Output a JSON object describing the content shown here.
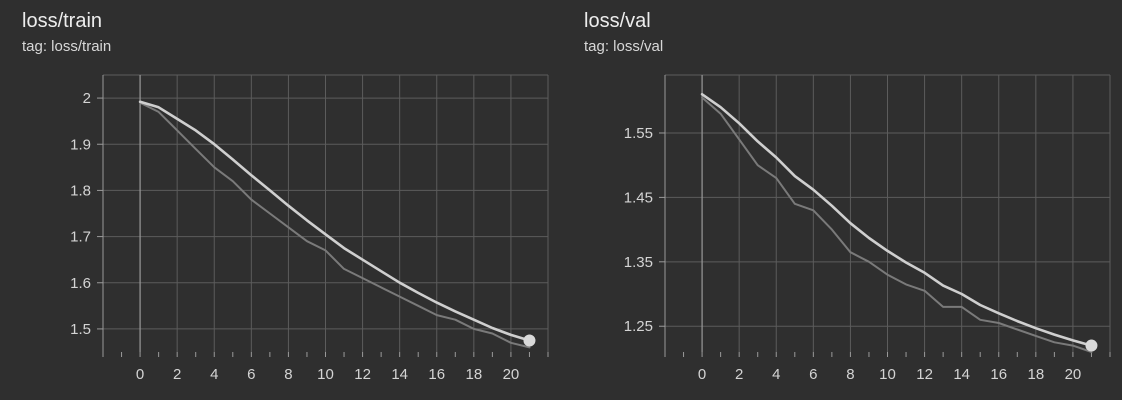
{
  "chart_data": [
    {
      "type": "line",
      "title": "loss/train",
      "subtitle": "tag: loss/train",
      "xlabel": "",
      "ylabel": "",
      "xlim": [
        -2,
        22
      ],
      "ylim": [
        1.45,
        2.05
      ],
      "xticks": [
        0,
        2,
        4,
        6,
        8,
        10,
        12,
        14,
        16,
        18,
        20
      ],
      "yticks": [
        1.5,
        1.6,
        1.7,
        1.8,
        1.9,
        2
      ],
      "grid": true,
      "series": [
        {
          "x": [
            0,
            1,
            2,
            3,
            4,
            5,
            6,
            7,
            8,
            9,
            10,
            11,
            12,
            13,
            14,
            15,
            16,
            17,
            18,
            19,
            20,
            21
          ],
          "values": [
            1.99,
            1.97,
            1.93,
            1.89,
            1.85,
            1.82,
            1.78,
            1.75,
            1.72,
            1.69,
            1.67,
            1.63,
            1.61,
            1.59,
            1.57,
            1.55,
            1.53,
            1.52,
            1.5,
            1.49,
            1.47,
            1.46
          ],
          "color": "#7a7a7a"
        },
        {
          "x": [
            0,
            1,
            2,
            3,
            4,
            5,
            6,
            7,
            8,
            9,
            10,
            11,
            12,
            13,
            14,
            15,
            16,
            17,
            18,
            19,
            20,
            21
          ],
          "values": [
            1.992,
            1.98,
            1.955,
            1.93,
            1.9,
            1.867,
            1.833,
            1.8,
            1.767,
            1.735,
            1.705,
            1.675,
            1.65,
            1.625,
            1.6,
            1.578,
            1.557,
            1.538,
            1.52,
            1.502,
            1.487,
            1.475
          ],
          "color": "#cfcfcf"
        }
      ]
    },
    {
      "type": "line",
      "title": "loss/val",
      "subtitle": "tag: loss/val",
      "xlabel": "",
      "ylabel": "",
      "xlim": [
        -2,
        22
      ],
      "ylim": [
        1.21,
        1.64
      ],
      "xticks": [
        0,
        2,
        4,
        6,
        8,
        10,
        12,
        14,
        16,
        18,
        20
      ],
      "yticks": [
        1.25,
        1.35,
        1.45,
        1.55
      ],
      "grid": true,
      "series": [
        {
          "x": [
            0,
            1,
            2,
            3,
            4,
            5,
            6,
            7,
            8,
            9,
            10,
            11,
            12,
            13,
            14,
            15,
            16,
            17,
            18,
            19,
            20,
            21
          ],
          "values": [
            1.605,
            1.58,
            1.54,
            1.5,
            1.48,
            1.44,
            1.43,
            1.4,
            1.365,
            1.35,
            1.33,
            1.315,
            1.305,
            1.28,
            1.28,
            1.26,
            1.255,
            1.245,
            1.235,
            1.225,
            1.22,
            1.21
          ],
          "color": "#7a7a7a"
        },
        {
          "x": [
            0,
            1,
            2,
            3,
            4,
            5,
            6,
            7,
            8,
            9,
            10,
            11,
            12,
            13,
            14,
            15,
            16,
            17,
            18,
            19,
            20,
            21
          ],
          "values": [
            1.61,
            1.59,
            1.565,
            1.537,
            1.512,
            1.483,
            1.462,
            1.437,
            1.41,
            1.387,
            1.367,
            1.349,
            1.333,
            1.313,
            1.3,
            1.283,
            1.27,
            1.258,
            1.247,
            1.237,
            1.228,
            1.22
          ],
          "color": "#cfcfcf"
        }
      ]
    }
  ]
}
